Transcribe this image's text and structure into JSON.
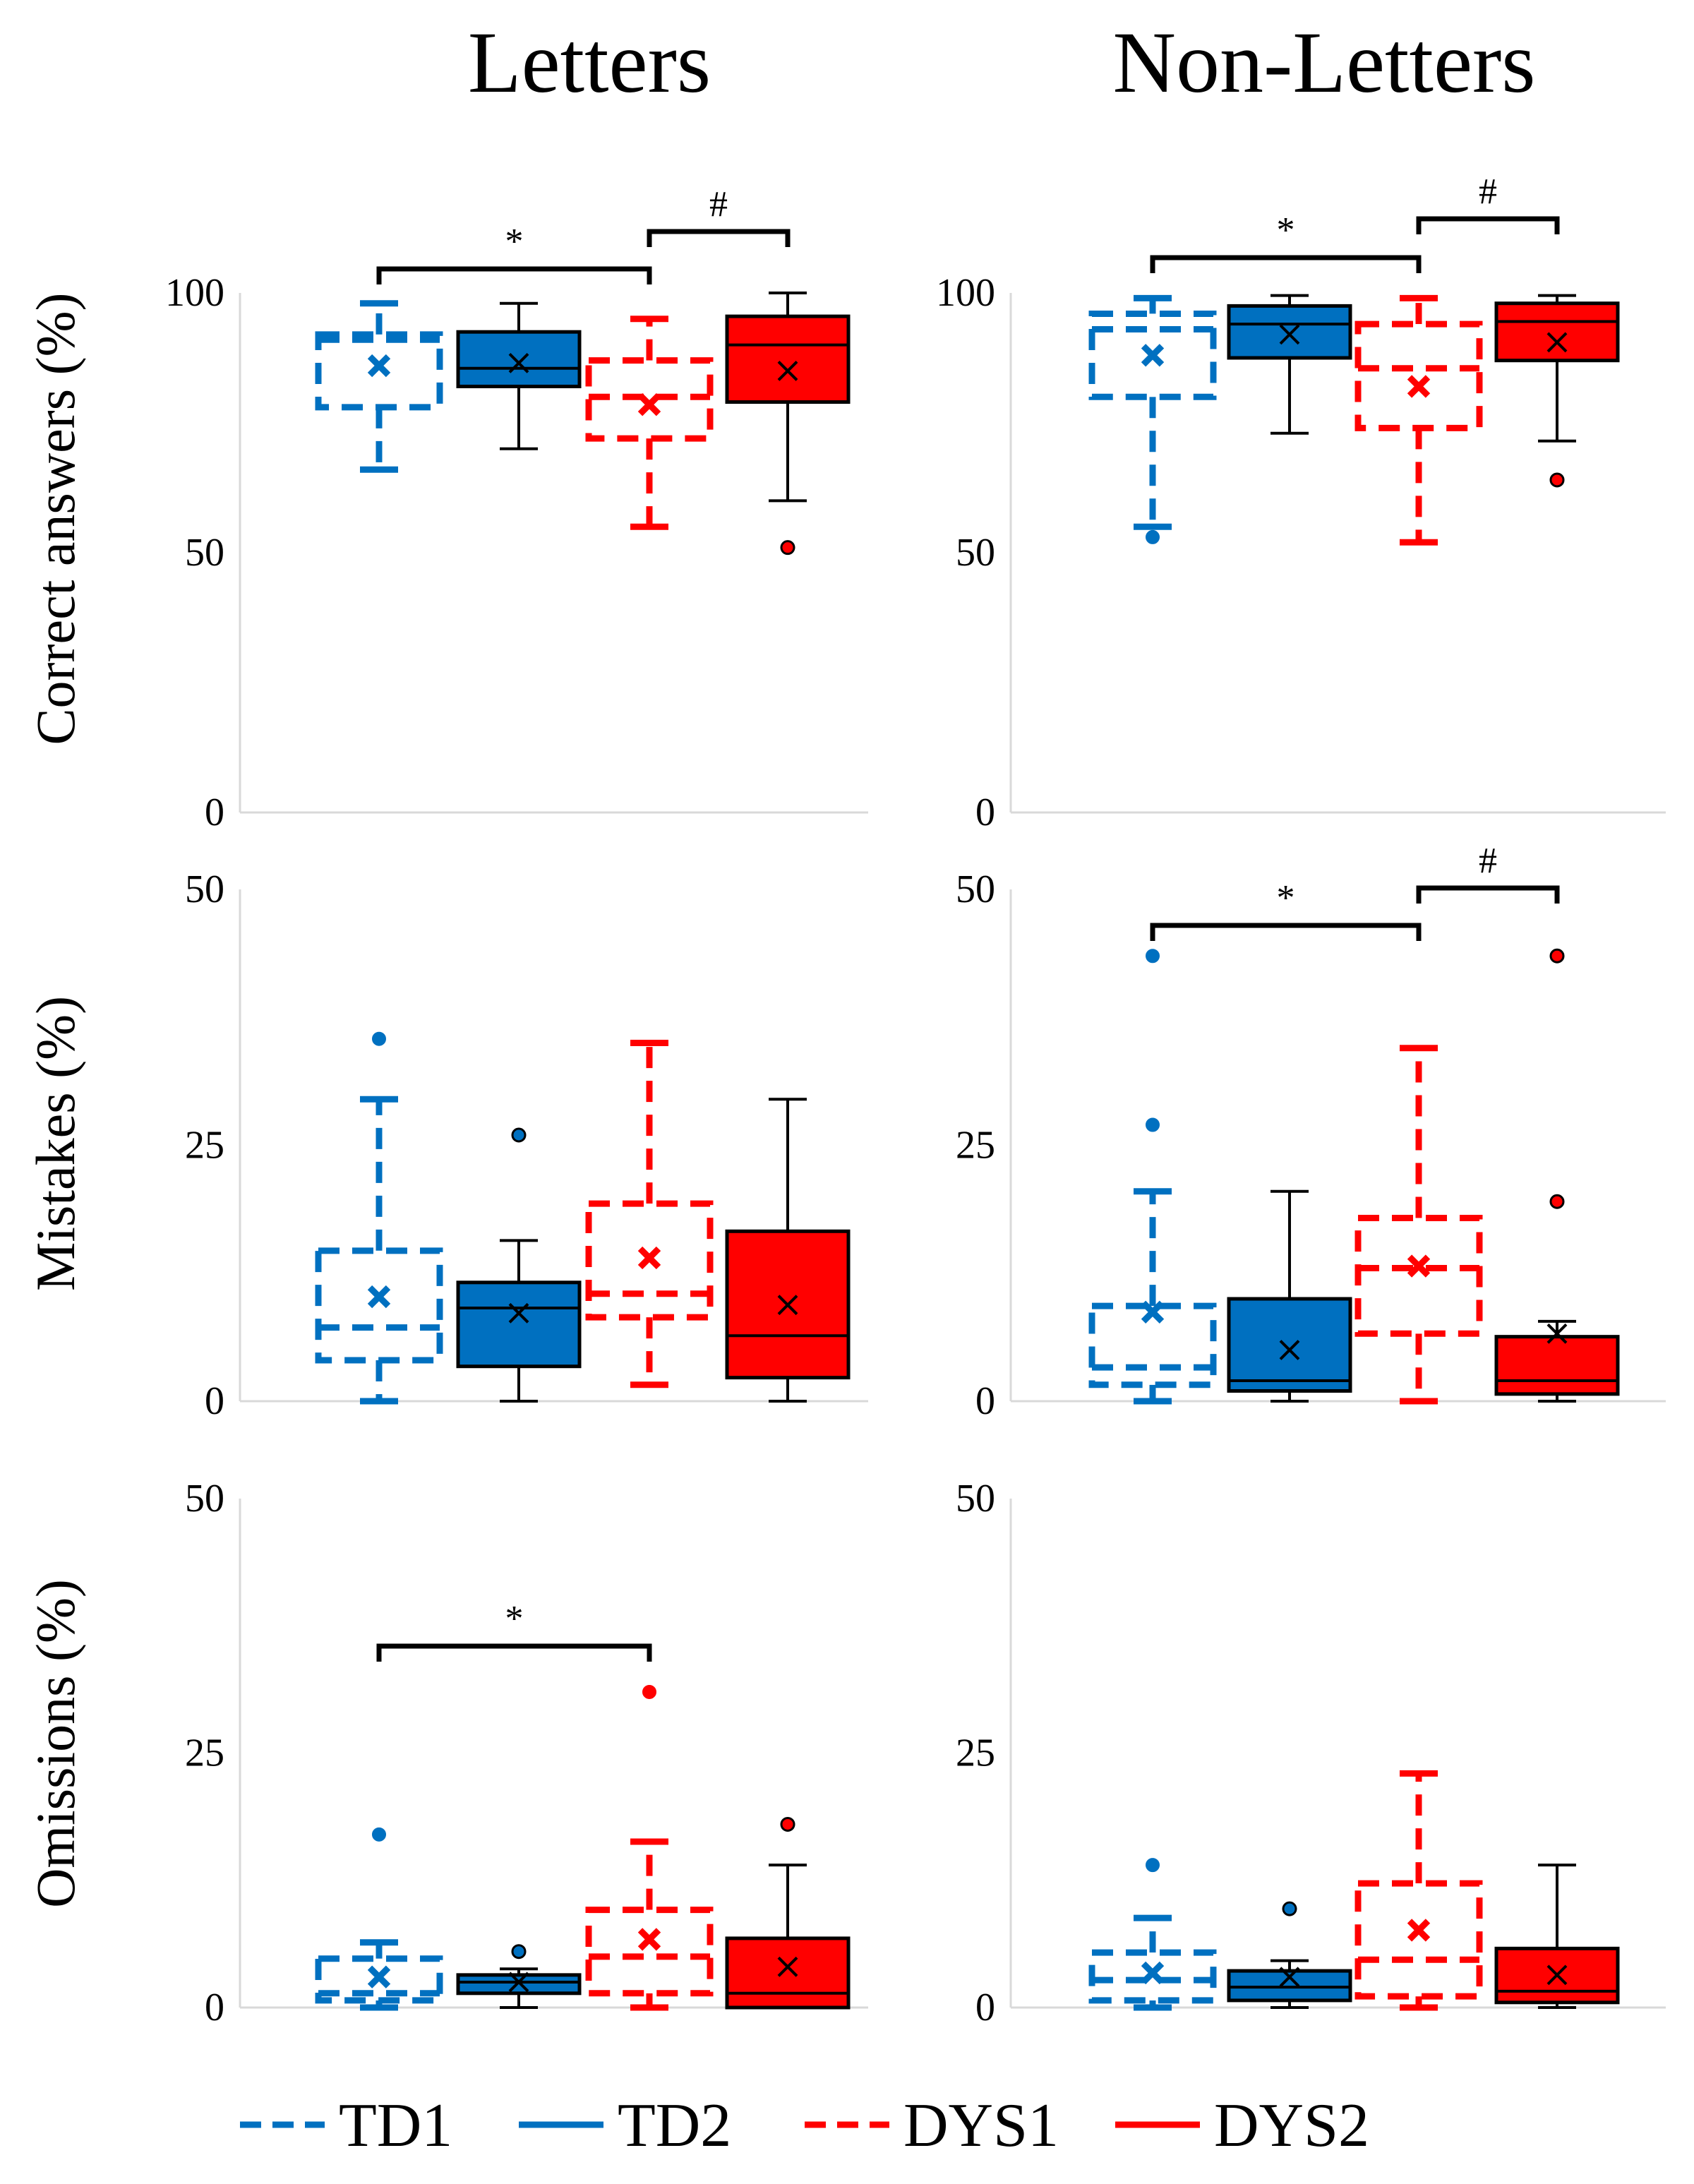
{
  "colors": {
    "TD": "#0070C0",
    "DYS": "#FF0000"
  },
  "legend": [
    {
      "label": "TD1",
      "color": "#0070C0",
      "style": "dashed"
    },
    {
      "label": "TD2",
      "color": "#0070C0",
      "style": "solid"
    },
    {
      "label": "DYS1",
      "color": "#FF0000",
      "style": "dashed"
    },
    {
      "label": "DYS2",
      "color": "#FF0000",
      "style": "solid"
    }
  ],
  "chart_data": {
    "type": "boxplot",
    "columns": [
      "Letters",
      "Non-Letters"
    ],
    "groups": [
      "TD1",
      "TD2",
      "DYS1",
      "DYS2"
    ],
    "legend_position": "bottom",
    "grid": false,
    "rows": [
      {
        "ylabel": "Correct answers (%)",
        "ylim": [
          0,
          100
        ],
        "ticks": [
          "0",
          "50",
          "100"
        ],
        "panels": [
          {
            "column": "Letters",
            "boxes": [
              {
                "group": "TD1",
                "min": 66,
                "q1": 78,
                "median": 91,
                "q3": 92,
                "max": 98,
                "mean": 86,
                "outliers": []
              },
              {
                "group": "TD2",
                "min": 70,
                "q1": 82,
                "median": 85.5,
                "q3": 92.5,
                "max": 98,
                "mean": 86.5,
                "outliers": []
              },
              {
                "group": "DYS1",
                "min": 55,
                "q1": 72,
                "median": 80,
                "q3": 87,
                "max": 95,
                "mean": 78.5,
                "outliers": []
              },
              {
                "group": "DYS2",
                "min": 60,
                "q1": 79,
                "median": 90,
                "q3": 95.5,
                "max": 100,
                "mean": 85,
                "outliers": [
                  51
                ]
              }
            ],
            "significance": [
              {
                "from": "TD1",
                "to": "DYS1",
                "label": "*",
                "level": 1
              },
              {
                "from": "DYS1",
                "to": "DYS2",
                "label": "#",
                "level": 2
              }
            ]
          },
          {
            "column": "Non-Letters",
            "boxes": [
              {
                "group": "TD1",
                "min": 55,
                "q1": 80,
                "median": 93,
                "q3": 96,
                "max": 99,
                "mean": 88,
                "outliers": [
                  53
                ]
              },
              {
                "group": "TD2",
                "min": 73,
                "q1": 87.5,
                "median": 94,
                "q3": 97.5,
                "max": 99.5,
                "mean": 92,
                "outliers": []
              },
              {
                "group": "DYS1",
                "min": 52,
                "q1": 74,
                "median": 85.5,
                "q3": 94,
                "max": 99,
                "mean": 82,
                "outliers": []
              },
              {
                "group": "DYS2",
                "min": 71.5,
                "q1": 87,
                "median": 94.5,
                "q3": 98,
                "max": 99.5,
                "mean": 90.5,
                "outliers": [
                  64
                ]
              }
            ],
            "significance": [
              {
                "from": "TD1",
                "to": "DYS1",
                "label": "*",
                "level": 1
              },
              {
                "from": "DYS1",
                "to": "DYS2",
                "label": "#",
                "level": 2
              }
            ]
          }
        ]
      },
      {
        "ylabel": "Mistakes (%)",
        "ylim": [
          0,
          50
        ],
        "ticks": [
          "0",
          "25",
          "50"
        ],
        "panels": [
          {
            "column": "Letters",
            "boxes": [
              {
                "group": "TD1",
                "min": 0,
                "q1": 4,
                "median": 7.2,
                "q3": 14.7,
                "max": 29.5,
                "mean": 10.2,
                "outliers": [
                  35.4
                ]
              },
              {
                "group": "TD2",
                "min": 0,
                "q1": 3.4,
                "median": 9.1,
                "q3": 11.6,
                "max": 15.7,
                "mean": 8.6,
                "outliers": [
                  26
                ]
              },
              {
                "group": "DYS1",
                "min": 1.6,
                "q1": 8.2,
                "median": 10.5,
                "q3": 19.3,
                "max": 35,
                "mean": 14,
                "outliers": []
              },
              {
                "group": "DYS2",
                "min": 0,
                "q1": 2.3,
                "median": 6.4,
                "q3": 16.6,
                "max": 29.5,
                "mean": 9.4,
                "outliers": []
              }
            ],
            "significance": []
          },
          {
            "column": "Non-Letters",
            "boxes": [
              {
                "group": "TD1",
                "min": 0,
                "q1": 1.6,
                "median": 3.3,
                "q3": 9.3,
                "max": 20.5,
                "mean": 8.7,
                "outliers": [
                  27,
                  43.5
                ]
              },
              {
                "group": "TD2",
                "min": 0,
                "q1": 1,
                "median": 2,
                "q3": 10,
                "max": 20.5,
                "mean": 5,
                "outliers": []
              },
              {
                "group": "DYS1",
                "min": 0,
                "q1": 6.6,
                "median": 13,
                "q3": 17.9,
                "max": 34.5,
                "mean": 13.2,
                "outliers": []
              },
              {
                "group": "DYS2",
                "min": 0,
                "q1": 0.7,
                "median": 2,
                "q3": 6.3,
                "max": 7.8,
                "mean": 6.6,
                "outliers": [
                  19.5,
                  43.5
                ]
              }
            ],
            "significance": [
              {
                "from": "TD1",
                "to": "DYS1",
                "label": "*",
                "level": 1
              },
              {
                "from": "DYS1",
                "to": "DYS2",
                "label": "#",
                "level": 2
              }
            ]
          }
        ]
      },
      {
        "ylabel": "Omissions (%)",
        "ylim": [
          0,
          50
        ],
        "ticks": [
          "0",
          "25",
          "50"
        ],
        "panels": [
          {
            "column": "Letters",
            "boxes": [
              {
                "group": "TD1",
                "min": 0,
                "q1": 0.7,
                "median": 1.4,
                "q3": 4.8,
                "max": 6.4,
                "mean": 3,
                "outliers": [
                  17
                ]
              },
              {
                "group": "TD2",
                "min": 0,
                "q1": 1.4,
                "median": 2.5,
                "q3": 3.2,
                "max": 3.8,
                "mean": 2.5,
                "outliers": [
                  5.5
                ]
              },
              {
                "group": "DYS1",
                "min": 0,
                "q1": 1.4,
                "median": 5,
                "q3": 9.6,
                "max": 16.3,
                "mean": 6.7,
                "outliers": [
                  31
                ]
              },
              {
                "group": "DYS2",
                "min": 0,
                "q1": 0,
                "median": 1.4,
                "q3": 6.8,
                "max": 14,
                "mean": 4,
                "outliers": [
                  18
                ]
              }
            ],
            "significance": [
              {
                "from": "TD1",
                "to": "DYS1",
                "label": "*",
                "level": 1
              }
            ]
          },
          {
            "column": "Non-Letters",
            "boxes": [
              {
                "group": "TD1",
                "min": 0,
                "q1": 0.7,
                "median": 2.7,
                "q3": 5.4,
                "max": 8.8,
                "mean": 3.4,
                "outliers": [
                  14
                ]
              },
              {
                "group": "TD2",
                "min": 0,
                "q1": 0.7,
                "median": 2,
                "q3": 3.6,
                "max": 4.6,
                "mean": 3,
                "outliers": [
                  9.7
                ]
              },
              {
                "group": "DYS1",
                "min": 0,
                "q1": 1.1,
                "median": 4.7,
                "q3": 12.2,
                "max": 23,
                "mean": 7.6,
                "outliers": []
              },
              {
                "group": "DYS2",
                "min": 0,
                "q1": 0.5,
                "median": 1.6,
                "q3": 5.8,
                "max": 14,
                "mean": 3.2,
                "outliers": []
              }
            ],
            "significance": []
          }
        ]
      }
    ]
  }
}
